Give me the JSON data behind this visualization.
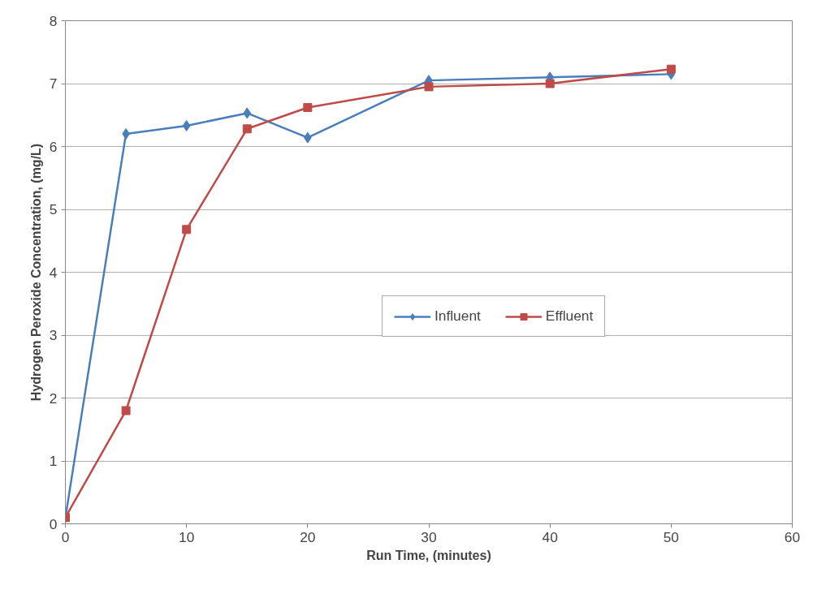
{
  "chart_data": {
    "type": "line",
    "xlabel": "Run Time, (minutes)",
    "ylabel": "Hydrogen Peroxide Concentration, (mg/L)",
    "x": [
      0,
      5,
      10,
      15,
      20,
      30,
      40,
      50
    ],
    "series": [
      {
        "name": "Influent",
        "color": "#4a7ebb",
        "marker": "diamond",
        "values": [
          0.1,
          6.2,
          6.33,
          6.53,
          6.14,
          7.05,
          7.1,
          7.15
        ]
      },
      {
        "name": "Effluent",
        "color": "#be4b48",
        "marker": "square",
        "values": [
          0.1,
          1.8,
          4.68,
          6.28,
          6.62,
          6.95,
          7.0,
          7.23
        ]
      }
    ],
    "xlim": [
      0,
      60
    ],
    "xticks": [
      0,
      10,
      20,
      30,
      40,
      50,
      60
    ],
    "ylim": [
      0,
      8
    ],
    "yticks": [
      0,
      1,
      2,
      3,
      4,
      5,
      6,
      7,
      8
    ],
    "grid": "y",
    "legend": "center",
    "line_style": "solid"
  }
}
